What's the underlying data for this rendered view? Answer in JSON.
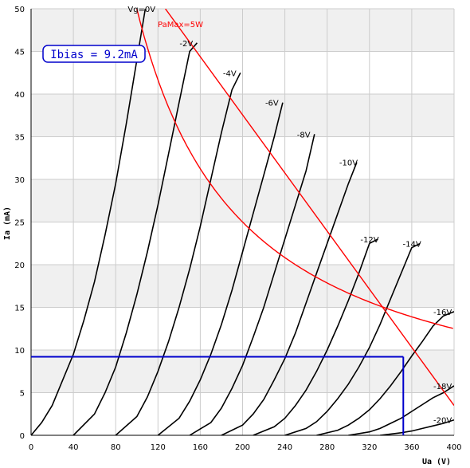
{
  "chart_data": {
    "type": "line",
    "title": "",
    "xlabel": "Ua (V)",
    "ylabel": "Ia (mA)",
    "xlim": [
      0,
      400
    ],
    "ylim": [
      0,
      50
    ],
    "x_ticks": [
      0,
      40,
      80,
      120,
      160,
      200,
      240,
      280,
      320,
      360,
      400
    ],
    "y_ticks": [
      0,
      5,
      10,
      15,
      20,
      25,
      30,
      35,
      40,
      45,
      50
    ],
    "grid": true,
    "colors": {
      "curve": "#000000",
      "load_line": "#ff0000",
      "pamax": "#ff0000",
      "bias": "#0000cc",
      "band": "#f0f0f0",
      "grid": "#cccccc"
    },
    "bias_annotation": "Ibias = 9.2mA",
    "bias_point": {
      "ua": 352,
      "ia": 9.2
    },
    "pamax": {
      "label": "PaMax=5W",
      "watts": 5
    },
    "load_line": [
      [
        127,
        50
      ],
      [
        400,
        3.5
      ]
    ],
    "series": [
      {
        "name": "Vg=0V",
        "label": "Vg=0V",
        "points": [
          [
            0,
            0
          ],
          [
            10,
            1.5
          ],
          [
            20,
            3.5
          ],
          [
            30,
            6.5
          ],
          [
            40,
            9.5
          ],
          [
            50,
            13.5
          ],
          [
            60,
            18
          ],
          [
            70,
            23.5
          ],
          [
            80,
            29.5
          ],
          [
            90,
            36.5
          ],
          [
            100,
            44
          ],
          [
            108,
            50
          ]
        ]
      },
      {
        "name": "-2V",
        "label": "-2V",
        "points": [
          [
            40,
            0
          ],
          [
            60,
            2.5
          ],
          [
            70,
            5
          ],
          [
            80,
            8
          ],
          [
            90,
            12
          ],
          [
            100,
            16.5
          ],
          [
            110,
            21.5
          ],
          [
            120,
            27
          ],
          [
            130,
            33
          ],
          [
            140,
            39
          ],
          [
            150,
            45
          ],
          [
            157,
            46
          ]
        ]
      },
      {
        "name": "-4V",
        "label": "-4V",
        "points": [
          [
            80,
            0
          ],
          [
            100,
            2.2
          ],
          [
            110,
            4.5
          ],
          [
            120,
            7.5
          ],
          [
            130,
            11
          ],
          [
            140,
            15
          ],
          [
            150,
            19.5
          ],
          [
            160,
            24.5
          ],
          [
            170,
            30
          ],
          [
            180,
            35.5
          ],
          [
            190,
            40.5
          ],
          [
            198,
            42.5
          ]
        ]
      },
      {
        "name": "-6V",
        "label": "-6V",
        "points": [
          [
            120,
            0
          ],
          [
            140,
            2
          ],
          [
            150,
            4
          ],
          [
            160,
            6.5
          ],
          [
            170,
            9.5
          ],
          [
            180,
            13
          ],
          [
            190,
            17
          ],
          [
            200,
            21.5
          ],
          [
            210,
            26
          ],
          [
            220,
            30.5
          ],
          [
            230,
            35
          ],
          [
            238,
            39
          ]
        ]
      },
      {
        "name": "-8V",
        "label": "-8V",
        "points": [
          [
            150,
            0
          ],
          [
            170,
            1.5
          ],
          [
            180,
            3.2
          ],
          [
            190,
            5.5
          ],
          [
            200,
            8.2
          ],
          [
            210,
            11.5
          ],
          [
            220,
            15
          ],
          [
            230,
            19
          ],
          [
            240,
            23
          ],
          [
            250,
            27
          ],
          [
            260,
            31
          ],
          [
            268,
            35.3
          ]
        ]
      },
      {
        "name": "-10V",
        "label": "-10V",
        "points": [
          [
            180,
            0
          ],
          [
            200,
            1.2
          ],
          [
            210,
            2.5
          ],
          [
            220,
            4.2
          ],
          [
            230,
            6.5
          ],
          [
            240,
            9
          ],
          [
            250,
            12
          ],
          [
            260,
            15.5
          ],
          [
            270,
            19
          ],
          [
            280,
            22.5
          ],
          [
            290,
            26
          ],
          [
            300,
            29.5
          ],
          [
            308,
            32
          ]
        ]
      },
      {
        "name": "-12V",
        "label": "-12V",
        "points": [
          [
            210,
            0
          ],
          [
            230,
            1
          ],
          [
            240,
            2
          ],
          [
            250,
            3.5
          ],
          [
            260,
            5.3
          ],
          [
            270,
            7.5
          ],
          [
            280,
            10
          ],
          [
            290,
            12.8
          ],
          [
            300,
            15.8
          ],
          [
            310,
            19
          ],
          [
            320,
            22.5
          ],
          [
            328,
            23
          ]
        ]
      },
      {
        "name": "-14V",
        "label": "-14V",
        "points": [
          [
            240,
            0
          ],
          [
            260,
            0.8
          ],
          [
            270,
            1.6
          ],
          [
            280,
            2.8
          ],
          [
            290,
            4.3
          ],
          [
            300,
            6
          ],
          [
            310,
            8
          ],
          [
            320,
            10.3
          ],
          [
            330,
            13
          ],
          [
            340,
            16
          ],
          [
            350,
            19
          ],
          [
            360,
            22
          ],
          [
            368,
            22.5
          ]
        ]
      },
      {
        "name": "-16V",
        "label": "-16V",
        "points": [
          [
            270,
            0
          ],
          [
            290,
            0.6
          ],
          [
            300,
            1.2
          ],
          [
            310,
            2
          ],
          [
            320,
            3
          ],
          [
            330,
            4.3
          ],
          [
            340,
            5.8
          ],
          [
            350,
            7.5
          ],
          [
            360,
            9.3
          ],
          [
            370,
            11
          ],
          [
            380,
            12.8
          ],
          [
            390,
            14
          ],
          [
            400,
            14.5
          ]
        ]
      },
      {
        "name": "-18V",
        "label": "-18V",
        "points": [
          [
            300,
            0
          ],
          [
            320,
            0.4
          ],
          [
            330,
            0.8
          ],
          [
            340,
            1.4
          ],
          [
            350,
            2
          ],
          [
            360,
            2.8
          ],
          [
            370,
            3.6
          ],
          [
            380,
            4.4
          ],
          [
            390,
            5
          ],
          [
            400,
            5.8
          ]
        ]
      },
      {
        "name": "-20V",
        "label": "-20V",
        "points": [
          [
            330,
            0
          ],
          [
            350,
            0.3
          ],
          [
            360,
            0.5
          ],
          [
            370,
            0.8
          ],
          [
            380,
            1.1
          ],
          [
            390,
            1.4
          ],
          [
            400,
            1.8
          ]
        ]
      }
    ]
  }
}
